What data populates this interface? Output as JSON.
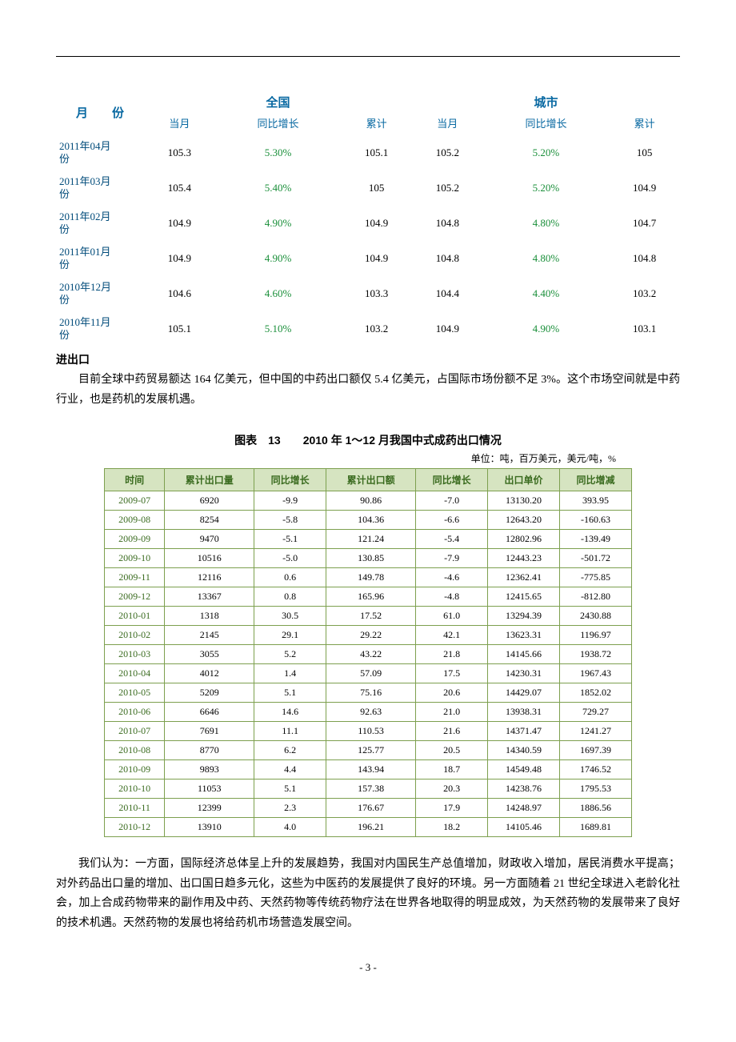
{
  "table1": {
    "header_groups": {
      "month": "月　　份",
      "national": "全国",
      "city": "城市"
    },
    "cols": {
      "current": "当月",
      "yoy": "同比增长",
      "cum": "累计"
    },
    "rows": [
      {
        "month_l1": "2011年04月",
        "month_l2": "份",
        "n_cur": "105.3",
        "n_yoy": "5.30%",
        "n_cum": "105.1",
        "c_cur": "105.2",
        "c_yoy": "5.20%",
        "c_cum": "105"
      },
      {
        "month_l1": "2011年03月",
        "month_l2": "份",
        "n_cur": "105.4",
        "n_yoy": "5.40%",
        "n_cum": "105",
        "c_cur": "105.2",
        "c_yoy": "5.20%",
        "c_cum": "104.9"
      },
      {
        "month_l1": "2011年02月",
        "month_l2": "份",
        "n_cur": "104.9",
        "n_yoy": "4.90%",
        "n_cum": "104.9",
        "c_cur": "104.8",
        "c_yoy": "4.80%",
        "c_cum": "104.7"
      },
      {
        "month_l1": "2011年01月",
        "month_l2": "份",
        "n_cur": "104.9",
        "n_yoy": "4.90%",
        "n_cum": "104.9",
        "c_cur": "104.8",
        "c_yoy": "4.80%",
        "c_cum": "104.8"
      },
      {
        "month_l1": "2010年12月",
        "month_l2": "份",
        "n_cur": "104.6",
        "n_yoy": "4.60%",
        "n_cum": "103.3",
        "c_cur": "104.4",
        "c_yoy": "4.40%",
        "c_cum": "103.2"
      },
      {
        "month_l1": "2010年11月",
        "month_l2": "份",
        "n_cur": "105.1",
        "n_yoy": "5.10%",
        "n_cum": "103.2",
        "c_cur": "104.9",
        "c_yoy": "4.90%",
        "c_cum": "103.1"
      }
    ]
  },
  "section_title": "进出口",
  "para1": "目前全球中药贸易额达 164 亿美元，但中国的中药出口额仅 5.4 亿美元，占国际市场份额不足 3%。这个市场空间就是中药行业，也是药机的发展机遇。",
  "chart_title": "图表　13　　2010 年 1～12 月我国中式成药出口情况",
  "unit_line": "单位：吨，百万美元，美元/吨，%",
  "table2": {
    "cols": [
      "时间",
      "累计出口量",
      "同比增长",
      "累计出口额",
      "同比增长",
      "出口单价",
      "同比增减"
    ],
    "rows": [
      [
        "2009-07",
        "6920",
        "-9.9",
        "90.86",
        "-7.0",
        "13130.20",
        "393.95"
      ],
      [
        "2009-08",
        "8254",
        "-5.8",
        "104.36",
        "-6.6",
        "12643.20",
        "-160.63"
      ],
      [
        "2009-09",
        "9470",
        "-5.1",
        "121.24",
        "-5.4",
        "12802.96",
        "-139.49"
      ],
      [
        "2009-10",
        "10516",
        "-5.0",
        "130.85",
        "-7.9",
        "12443.23",
        "-501.72"
      ],
      [
        "2009-11",
        "12116",
        "0.6",
        "149.78",
        "-4.6",
        "12362.41",
        "-775.85"
      ],
      [
        "2009-12",
        "13367",
        "0.8",
        "165.96",
        "-4.8",
        "12415.65",
        "-812.80"
      ],
      [
        "2010-01",
        "1318",
        "30.5",
        "17.52",
        "61.0",
        "13294.39",
        "2430.88"
      ],
      [
        "2010-02",
        "2145",
        "29.1",
        "29.22",
        "42.1",
        "13623.31",
        "1196.97"
      ],
      [
        "2010-03",
        "3055",
        "5.2",
        "43.22",
        "21.8",
        "14145.66",
        "1938.72"
      ],
      [
        "2010-04",
        "4012",
        "1.4",
        "57.09",
        "17.5",
        "14230.31",
        "1967.43"
      ],
      [
        "2010-05",
        "5209",
        "5.1",
        "75.16",
        "20.6",
        "14429.07",
        "1852.02"
      ],
      [
        "2010-06",
        "6646",
        "14.6",
        "92.63",
        "21.0",
        "13938.31",
        "729.27"
      ],
      [
        "2010-07",
        "7691",
        "11.1",
        "110.53",
        "21.6",
        "14371.47",
        "1241.27"
      ],
      [
        "2010-08",
        "8770",
        "6.2",
        "125.77",
        "20.5",
        "14340.59",
        "1697.39"
      ],
      [
        "2010-09",
        "9893",
        "4.4",
        "143.94",
        "18.7",
        "14549.48",
        "1746.52"
      ],
      [
        "2010-10",
        "11053",
        "5.1",
        "157.38",
        "20.3",
        "14238.76",
        "1795.53"
      ],
      [
        "2010-11",
        "12399",
        "2.3",
        "176.67",
        "17.9",
        "14248.97",
        "1886.56"
      ],
      [
        "2010-12",
        "13910",
        "4.0",
        "196.21",
        "18.2",
        "14105.46",
        "1689.81"
      ]
    ]
  },
  "para2": "我们认为：一方面，国际经济总体呈上升的发展趋势，我国对内国民生产总值增加，财政收入增加，居民消费水平提高；对外药品出口量的增加、出口国日趋多元化，这些为中医药的发展提供了良好的环境。另一方面随着 21 世纪全球进入老龄化社会，加上合成药物带来的副作用及中药、天然药物等传统药物疗法在世界各地取得的明显成效，为天然药物的发展带来了良好的技术机遇。天然药物的发展也将给药机市场营造发展空间。",
  "page_num": "- 3 -"
}
